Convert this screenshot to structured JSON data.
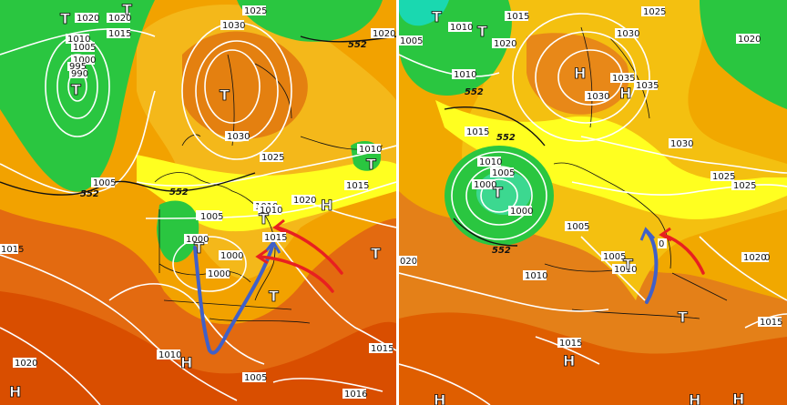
{
  "panels": [
    {
      "id": "left",
      "isobar_labels": [
        "1020",
        "1020",
        "1015",
        "1010",
        "1005",
        "1000",
        "995",
        "990",
        "1005",
        "1025",
        "1030",
        "1030",
        "1025",
        "1020",
        "1010",
        "1015",
        "1010",
        "1005",
        "1000",
        "1000",
        "1000",
        "1015",
        "1020",
        "1015",
        "1010",
        "1010",
        "1005",
        "1005",
        "1016",
        "1020",
        "1015"
      ],
      "height_label": "552",
      "pressure_centers": [
        {
          "type": "T"
        },
        {
          "type": "T"
        },
        {
          "type": "T"
        },
        {
          "type": "T"
        },
        {
          "type": "T"
        },
        {
          "type": "T"
        },
        {
          "type": "T"
        },
        {
          "type": "T"
        },
        {
          "type": "T"
        },
        {
          "type": "H"
        },
        {
          "type": "H"
        },
        {
          "type": "H"
        }
      ]
    },
    {
      "id": "right",
      "isobar_labels": [
        "1015",
        "1010",
        "1005",
        "1020",
        "1020",
        "1025",
        "1030",
        "1035",
        "1035",
        "1030",
        "1030",
        "1025",
        "1025",
        "1020",
        "1015",
        "1010",
        "1005",
        "1000",
        "1000",
        "1005",
        "1010",
        "1005",
        "1010",
        "1015",
        "1020",
        "1015",
        "1010",
        "0",
        "020"
      ],
      "height_label": "552",
      "pressure_centers": [
        {
          "type": "T"
        },
        {
          "type": "T"
        },
        {
          "type": "T"
        },
        {
          "type": "T"
        },
        {
          "type": "T"
        },
        {
          "type": "H"
        },
        {
          "type": "H"
        },
        {
          "type": "H"
        },
        {
          "type": "H"
        },
        {
          "type": "H"
        },
        {
          "type": "H"
        }
      ]
    }
  ],
  "colors": {
    "green": "#22c63c",
    "yellow": "#ffff00",
    "orange": "#f0a000",
    "deep_orange": "#e06400",
    "red": "#d23c00",
    "cyan": "#1ad8b0",
    "flow_blue": "#4060c8",
    "flow_red": "#e82020"
  }
}
